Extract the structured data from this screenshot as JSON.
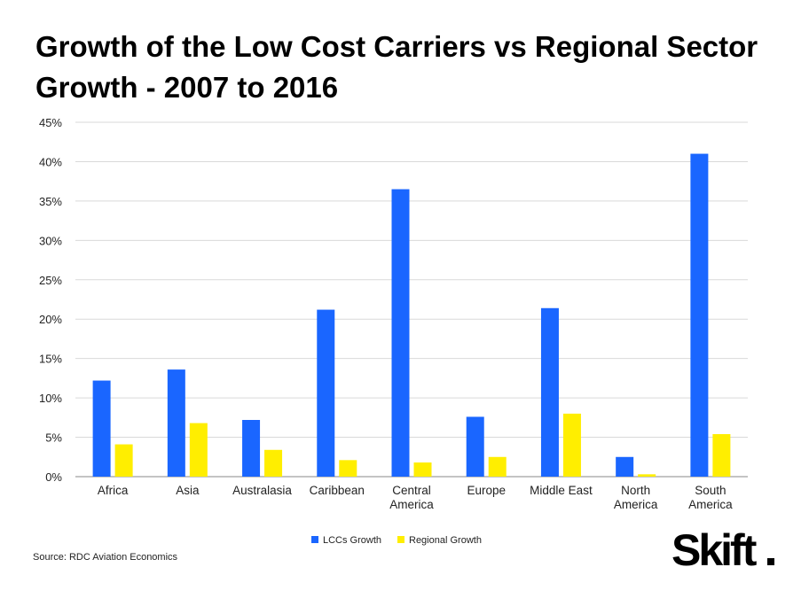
{
  "title": "Growth of the Low Cost Carriers vs Regional Sector Growth - 2007 to 2016",
  "source": "Source: RDC Aviation Economics",
  "logo": "Skift",
  "colors": {
    "lcc": "#1a66ff",
    "regional": "#ffee00",
    "grid": "#d9d9d9",
    "axis": "#888888"
  },
  "chart_data": {
    "type": "bar",
    "title": "Growth of the Low Cost Carriers vs Regional Sector Growth - 2007 to 2016",
    "categories": [
      [
        "Africa"
      ],
      [
        "Asia"
      ],
      [
        "Australasia"
      ],
      [
        "Caribbean"
      ],
      [
        "Central",
        "America"
      ],
      [
        "Europe"
      ],
      [
        "Middle East"
      ],
      [
        "North",
        "America"
      ],
      [
        "South",
        "America"
      ]
    ],
    "series": [
      {
        "name": "LCCs Growth",
        "color": "#1a66ff",
        "values": [
          12.2,
          13.6,
          7.2,
          21.2,
          36.5,
          7.6,
          21.4,
          2.5,
          41.0
        ]
      },
      {
        "name": "Regional Growth",
        "color": "#ffee00",
        "values": [
          4.1,
          6.8,
          3.4,
          2.1,
          1.8,
          2.5,
          8.0,
          0.3,
          5.4
        ]
      }
    ],
    "y_ticks": [
      "0%",
      "5%",
      "10%",
      "15%",
      "20%",
      "25%",
      "30%",
      "35%",
      "40%",
      "45%"
    ],
    "ylim": [
      0,
      45
    ],
    "grid": true,
    "legend_position": "bottom-center"
  }
}
